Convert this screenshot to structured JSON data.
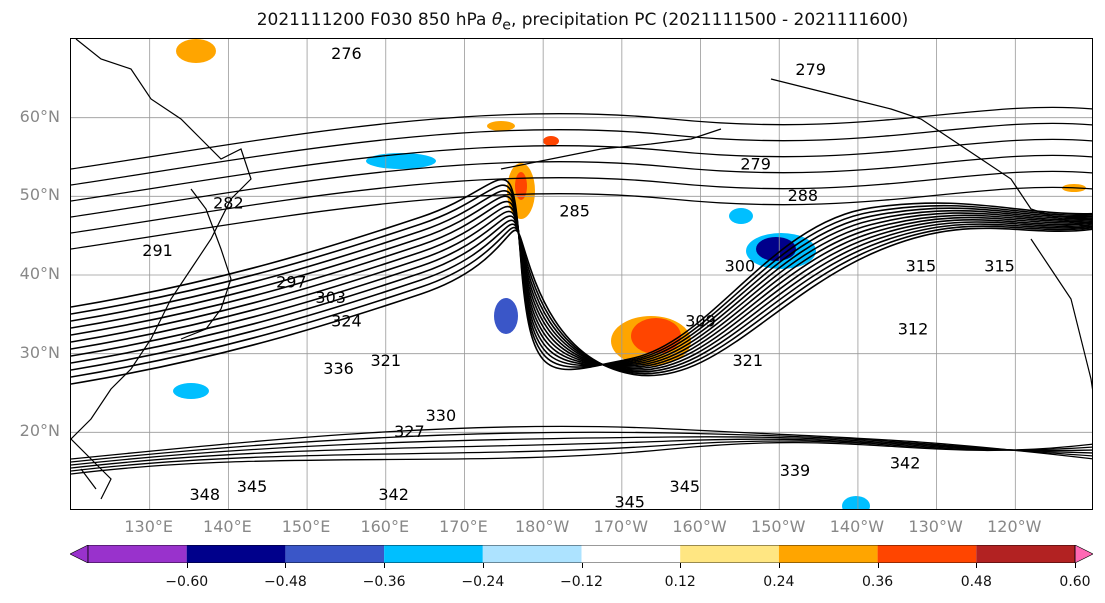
{
  "title": {
    "prefix": "2021111200 F030 850 hPa ",
    "theta": "θ",
    "sub": "e",
    "suffix": ", precipitation PC (2021111500 - 2021111600)"
  },
  "map": {
    "type": "map",
    "projection": "plate carree",
    "extent": {
      "lon": [
        120,
        250
      ],
      "lat": [
        10,
        70
      ]
    },
    "grid": true,
    "lat_labels": [
      "60°N",
      "50°N",
      "40°N",
      "30°N",
      "20°N"
    ],
    "lon_labels": [
      "130°E",
      "140°E",
      "150°E",
      "160°E",
      "170°E",
      "180°W",
      "170°W",
      "160°W",
      "150°W",
      "140°W",
      "130°W",
      "120°W"
    ],
    "contour_field": "850 hPa θe (K)",
    "contour_labels": [
      {
        "text": "276",
        "lon": 155,
        "lat": 68
      },
      {
        "text": "279",
        "lon": 214,
        "lat": 66
      },
      {
        "text": "279",
        "lon": 207,
        "lat": 54
      },
      {
        "text": "282",
        "lon": 140,
        "lat": 49
      },
      {
        "text": "285",
        "lon": 184,
        "lat": 48
      },
      {
        "text": "288",
        "lon": 213,
        "lat": 50
      },
      {
        "text": "291",
        "lon": 131,
        "lat": 43
      },
      {
        "text": "297",
        "lon": 148,
        "lat": 39
      },
      {
        "text": "300",
        "lon": 205,
        "lat": 41
      },
      {
        "text": "303",
        "lon": 153,
        "lat": 37
      },
      {
        "text": "309",
        "lon": 200,
        "lat": 34
      },
      {
        "text": "312",
        "lon": 227,
        "lat": 33
      },
      {
        "text": "315",
        "lon": 228,
        "lat": 41
      },
      {
        "text": "315",
        "lon": 238,
        "lat": 41
      },
      {
        "text": "321",
        "lon": 160,
        "lat": 29
      },
      {
        "text": "321",
        "lon": 206,
        "lat": 29
      },
      {
        "text": "324",
        "lon": 155,
        "lat": 34
      },
      {
        "text": "327",
        "lon": 163,
        "lat": 20
      },
      {
        "text": "330",
        "lon": 167,
        "lat": 22
      },
      {
        "text": "336",
        "lon": 154,
        "lat": 28
      },
      {
        "text": "339",
        "lon": 212,
        "lat": 15
      },
      {
        "text": "342",
        "lon": 161,
        "lat": 12
      },
      {
        "text": "342",
        "lon": 226,
        "lat": 16
      },
      {
        "text": "345",
        "lon": 143,
        "lat": 13
      },
      {
        "text": "345",
        "lon": 191,
        "lat": 11
      },
      {
        "text": "345",
        "lon": 198,
        "lat": 13
      },
      {
        "text": "348",
        "lon": 137,
        "lat": 12
      }
    ],
    "colors": {
      "contour": "#000000",
      "grid": "#999999",
      "coast": "#000000"
    }
  },
  "colorbar": {
    "ticks": [
      "−0.60",
      "−0.48",
      "−0.36",
      "−0.24",
      "−0.12",
      "0.12",
      "0.24",
      "0.36",
      "0.48",
      "0.60"
    ],
    "colors": [
      "#9932CC",
      "#00008B",
      "#3A56C8",
      "#00BFFF",
      "#ADE3FF",
      "#FFFFFF",
      "#FFE682",
      "#FFA500",
      "#FF4500",
      "#B22222",
      "#FF85AA",
      "#FF69B4"
    ]
  }
}
